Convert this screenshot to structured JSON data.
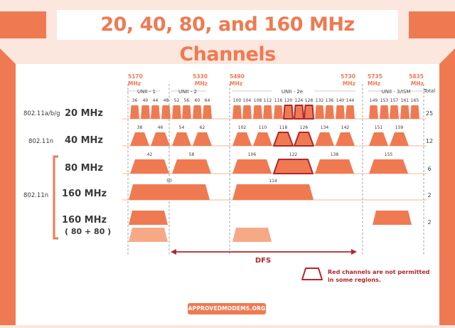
{
  "title": "20, 40, 80, and 160 MHz Channels",
  "footer": "APPROVEDMODEMS.ORG",
  "colors": {
    "accent": "#ef7a52",
    "light": "#f5a987",
    "red": "#b3262b",
    "bg": "#fbe7de",
    "text": "#3a3a3a"
  },
  "frequencies": [
    {
      "label": "5170 MHz",
      "freq": 5170
    },
    {
      "label": "5330 MHz",
      "freq": 5330
    },
    {
      "label": "5490 MHz",
      "freq": 5490
    },
    {
      "label": "5730 MHz",
      "freq": 5730
    },
    {
      "label": "5735 MHz",
      "freq": 5735
    },
    {
      "label": "5835 MHz",
      "freq": 5835
    }
  ],
  "bands": [
    "UNII - 1",
    "UNII - 2",
    "UNII - 2e",
    "UNII - 3/ISM"
  ],
  "total_header": "Total",
  "rows": [
    {
      "standard": "802.11a/b/g",
      "width": "20 MHz",
      "total": "25",
      "channels": [
        "36",
        "40",
        "44",
        "48",
        "52",
        "56",
        "60",
        "64",
        "100",
        "104",
        "108",
        "112",
        "116",
        "120",
        "124",
        "128",
        "132",
        "136",
        "140",
        "144",
        "149",
        "153",
        "157",
        "161",
        "165"
      ],
      "red": [
        "120",
        "124",
        "128"
      ]
    },
    {
      "standard": "802.11n",
      "width": "40 MHz",
      "total": "12",
      "channels": [
        "38",
        "46",
        "54",
        "62",
        "102",
        "110",
        "118",
        "126",
        "134",
        "142",
        "151",
        "159"
      ],
      "red": [
        "118",
        "126"
      ]
    },
    {
      "standard": "",
      "width": "80 MHz",
      "total": "6",
      "channels": [
        "42",
        "58",
        "106",
        "122",
        "138",
        "155"
      ],
      "red": [
        "122"
      ]
    },
    {
      "standard": "802.11n",
      "width": "160 MHz",
      "total": "2",
      "channels": [
        "50",
        "114"
      ],
      "red": []
    },
    {
      "standard": "",
      "width": "160 MHz",
      "width_sub": "( 80 + 80 )",
      "total": "2",
      "channels": [],
      "red": []
    }
  ],
  "dfs_label": "DFS",
  "legend_text": [
    "Red channels are not permitted",
    "in some regions."
  ]
}
